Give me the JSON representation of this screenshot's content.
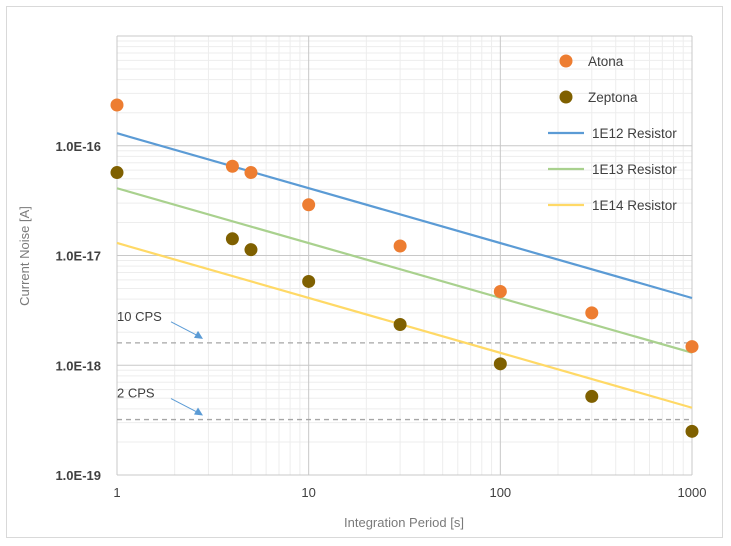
{
  "chart_data": {
    "type": "scatter",
    "x_scale": "log",
    "y_scale": "log",
    "xlim": [
      1,
      1000
    ],
    "ylim": [
      1e-19,
      1e-15
    ],
    "xlabel": "Integration Period [s]",
    "ylabel": "Current Noise [A]",
    "x_ticks": [
      "1",
      "10",
      "100",
      "1000"
    ],
    "y_ticks": [
      "1.0E-19",
      "1.0E-18",
      "1.0E-17",
      "1.0E-16"
    ],
    "grid": true,
    "legend_position": "top-right",
    "series": [
      {
        "name": "Atona",
        "kind": "markers",
        "color": "#ed7d31",
        "x": [
          1,
          4,
          5,
          10,
          30,
          100,
          300,
          1000
        ],
        "y": [
          2.35e-16,
          6.5e-17,
          5.7e-17,
          2.9e-17,
          1.22e-17,
          4.7e-18,
          3e-18,
          1.48e-18
        ]
      },
      {
        "name": "Zeptona",
        "kind": "markers",
        "color": "#7f6000",
        "x": [
          1,
          4,
          5,
          10,
          30,
          100,
          300,
          1000
        ],
        "y": [
          5.7e-17,
          1.42e-17,
          1.13e-17,
          5.8e-18,
          2.35e-18,
          1.03e-18,
          5.2e-19,
          2.5e-19
        ]
      },
      {
        "name": "1E12 Resistor",
        "kind": "line",
        "color": "#5b9bd5",
        "x": [
          1,
          1000
        ],
        "y": [
          1.3e-16,
          4.1e-18
        ]
      },
      {
        "name": "1E13 Resistor",
        "kind": "line",
        "color": "#a9d18e",
        "x": [
          1,
          1000
        ],
        "y": [
          4.1e-17,
          1.3e-18
        ]
      },
      {
        "name": "1E14 Resistor",
        "kind": "line",
        "color": "#ffd966",
        "x": [
          1,
          1000
        ],
        "y": [
          1.3e-17,
          4.1e-19
        ]
      }
    ],
    "reference_lines": [
      {
        "label": "10 CPS",
        "y": 1.6e-18,
        "style": "dashed",
        "color": "#a6a6a6"
      },
      {
        "label": "2 CPS",
        "y": 3.2e-19,
        "style": "dashed",
        "color": "#a6a6a6"
      }
    ],
    "annotation_arrow_color": "#5b9bd5"
  }
}
